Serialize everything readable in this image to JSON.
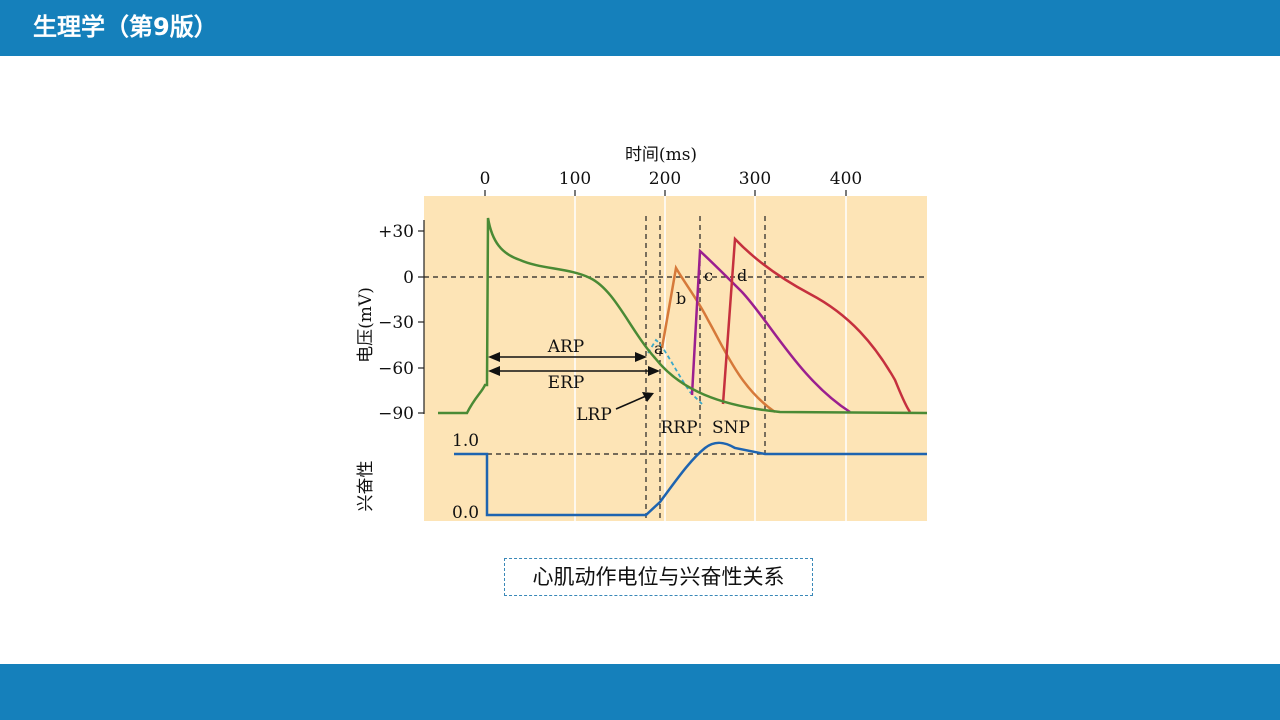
{
  "header": {
    "title": "生理学（第9版）"
  },
  "colors": {
    "brand_bar": "#1580bb",
    "plot_background": "#fde4b6",
    "grid": "#ffffff",
    "normal_ap": "#4a8a35",
    "curve_b": "#d6793a",
    "curve_c": "#9b1f8f",
    "curve_d": "#c5303e",
    "curve_a": "#3aa8c8",
    "excitability": "#1e64b0"
  },
  "figure": {
    "x_axis_title": "时间(ms)",
    "x_ticks": [
      "0",
      "100",
      "200",
      "300",
      "400"
    ],
    "y_axis_title": "电压(mV)",
    "y_ticks": [
      "+30",
      "0",
      "−30",
      "−60",
      "−90"
    ],
    "excitability_title": "兴奋性",
    "excitability_ticks": [
      "1.0",
      "0.0"
    ],
    "labels": {
      "arp": "ARP",
      "erp": "ERP",
      "lrp": "LRP",
      "rrp": "RRP",
      "snp": "SNP",
      "a": "a",
      "b": "b",
      "c": "c",
      "d": "d"
    }
  },
  "caption": "心肌动作电位与兴奋性关系"
}
